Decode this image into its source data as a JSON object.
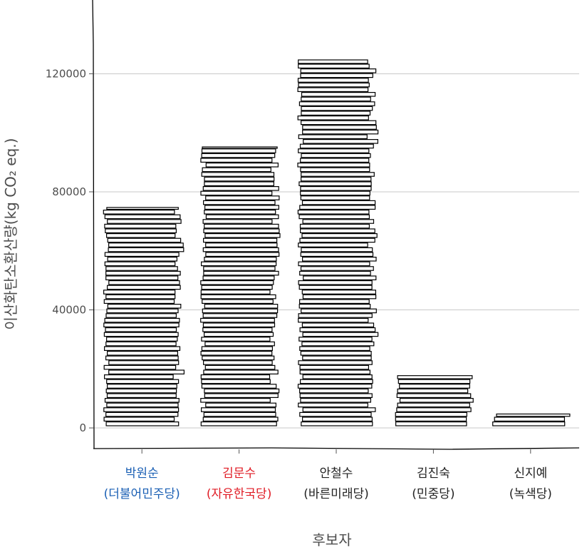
{
  "chart_data": {
    "type": "bar",
    "title": "",
    "xlabel": "후보자",
    "ylabel": "이산화탄소환산량(kg CO₂ eq.)",
    "ylim": [
      -7000,
      145000
    ],
    "yticks": [
      0,
      40000,
      80000,
      120000
    ],
    "grid": true,
    "categories": [
      {
        "name": "박원순",
        "party": "(더불어민주당)",
        "color": "#1a5fb4"
      },
      {
        "name": "김문수",
        "party": "(자유한국당)",
        "color": "#e01b24"
      },
      {
        "name": "안철수",
        "party": "(바른미래당)",
        "color": "#222222"
      },
      {
        "name": "김진숙",
        "party": "(민중당)",
        "color": "#222222"
      },
      {
        "name": "신지예",
        "party": "(녹색당)",
        "color": "#222222"
      }
    ],
    "values": [
      75000,
      95500,
      125000,
      18000,
      5000
    ]
  }
}
